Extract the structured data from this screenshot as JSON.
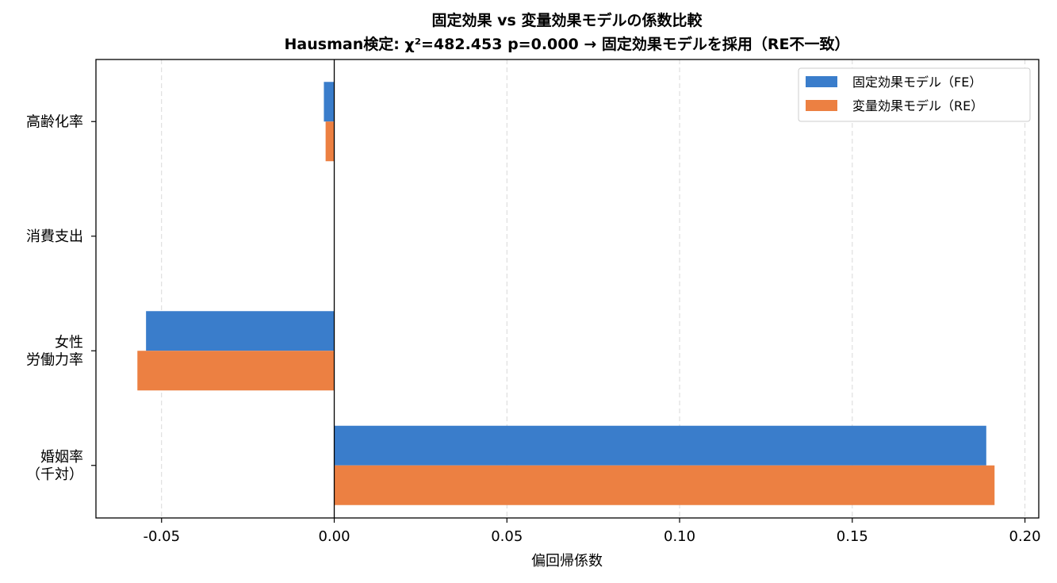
{
  "chart_data": {
    "type": "bar",
    "orientation": "horizontal",
    "title": "固定効果 vs 変量効果モデルの係数比較",
    "subtitle": "Hausman検定: χ²=482.453  p=0.000  → 固定効果モデルを採用（RE不一致）",
    "xlabel": "偏回帰係数",
    "ylabel": "",
    "categories": [
      {
        "lines": [
          "高齢化率"
        ]
      },
      {
        "lines": [
          "消費支出"
        ]
      },
      {
        "lines": [
          "女性",
          "労働力率"
        ]
      },
      {
        "lines": [
          "婚姻率",
          "（千対）"
        ]
      }
    ],
    "series": [
      {
        "name": "固定効果モデル（FE）",
        "color": "#3a7dcb",
        "values": [
          -0.003,
          0.0,
          -0.0545,
          0.1888
        ]
      },
      {
        "name": "変量効果モデル（RE）",
        "color": "#ec8042",
        "values": [
          -0.0025,
          0.0,
          -0.057,
          0.1912
        ]
      }
    ],
    "xlim": [
      -0.069,
      0.204
    ],
    "xticks": [
      {
        "value": -0.05,
        "label": "-0.05"
      },
      {
        "value": 0.0,
        "label": "0.00"
      },
      {
        "value": 0.05,
        "label": "0.05"
      },
      {
        "value": 0.1,
        "label": "0.10"
      },
      {
        "value": 0.15,
        "label": "0.15"
      },
      {
        "value": 0.2,
        "label": "0.20"
      }
    ],
    "grid": "x-dashed",
    "zero_line": true,
    "legend_position": "top-right"
  }
}
